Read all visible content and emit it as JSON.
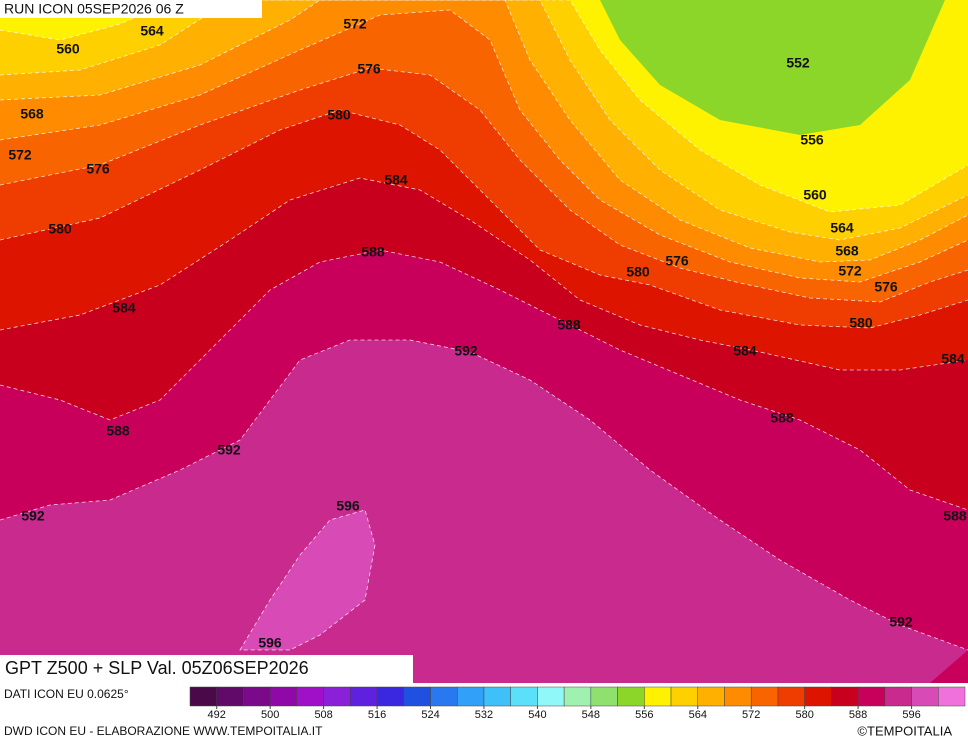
{
  "header": {
    "run": "RUN ICON 05SEP2026 06 Z",
    "title": "GPT Z500 + SLP Val. 05Z06SEP2026"
  },
  "contour_labels": [
    572,
    564,
    560,
    576,
    552,
    568,
    580,
    572,
    576,
    556,
    584,
    560,
    580,
    564,
    588,
    568,
    580,
    576,
    572,
    576,
    584,
    588,
    580,
    592,
    584,
    584,
    588,
    588,
    592,
    596,
    592,
    588,
    596,
    592
  ],
  "scale": {
    "colors": [
      "#4a0a4a",
      "#620a6a",
      "#7a0a8a",
      "#9008a8",
      "#a010c8",
      "#8a20d8",
      "#6020e0",
      "#3a28e0",
      "#2050e0",
      "#2a78f0",
      "#30a0f8",
      "#40c0f8",
      "#5ae0f8",
      "#90f8f8",
      "#a0f0b0",
      "#90e070",
      "#8cd62a",
      "#fff200",
      "#ffd000",
      "#ffb000",
      "#ff8c00",
      "#f86400",
      "#ef3c00",
      "#dd1400",
      "#c8001e",
      "#c8005c",
      "#c82a8e",
      "#d84ab6",
      "#f070dc"
    ],
    "ticks": [
      492,
      500,
      508,
      516,
      524,
      532,
      540,
      548,
      556,
      564,
      572,
      580,
      588,
      596
    ]
  },
  "footer": {
    "source": "DATI ICON EU 0.0625°",
    "credit": "DWD ICON EU - ELABORAZIONE WWW.TEMPOITALIA.IT",
    "logo": "©TEMPOITALIA"
  }
}
